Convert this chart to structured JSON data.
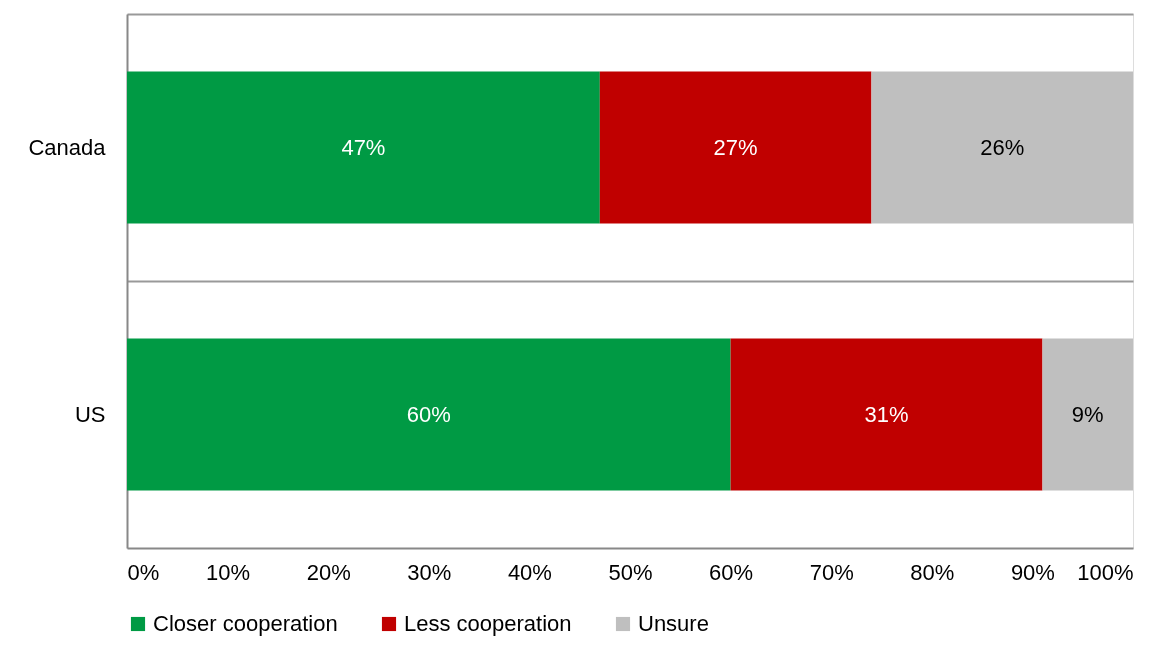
{
  "chart_data": {
    "type": "bar",
    "orientation": "horizontal",
    "stacked": true,
    "categories": [
      "Canada",
      "US"
    ],
    "series": [
      {
        "name": "Closer cooperation",
        "color": "#009a44",
        "values": [
          47,
          60
        ]
      },
      {
        "name": "Less cooperation",
        "color": "#c00000",
        "values": [
          27,
          31
        ]
      },
      {
        "name": "Unsure",
        "color": "#bfbfbf",
        "values": [
          26,
          9
        ]
      }
    ],
    "xlim": [
      0,
      100
    ],
    "xticks": [
      {
        "value": 0,
        "label": "0%"
      },
      {
        "value": 10,
        "label": "10%"
      },
      {
        "value": 20,
        "label": "20%"
      },
      {
        "value": 30,
        "label": "30%"
      },
      {
        "value": 40,
        "label": "40%"
      },
      {
        "value": 50,
        "label": "50%"
      },
      {
        "value": 60,
        "label": "60%"
      },
      {
        "value": 70,
        "label": "70%"
      },
      {
        "value": 80,
        "label": "80%"
      },
      {
        "value": 90,
        "label": "90%"
      },
      {
        "value": 100,
        "label": "100%"
      }
    ],
    "value_labels": [
      [
        "47%",
        "60%"
      ],
      [
        "27%",
        "31%"
      ],
      [
        "26%",
        "9%"
      ]
    ],
    "grid": "y",
    "legend": "bottom"
  }
}
